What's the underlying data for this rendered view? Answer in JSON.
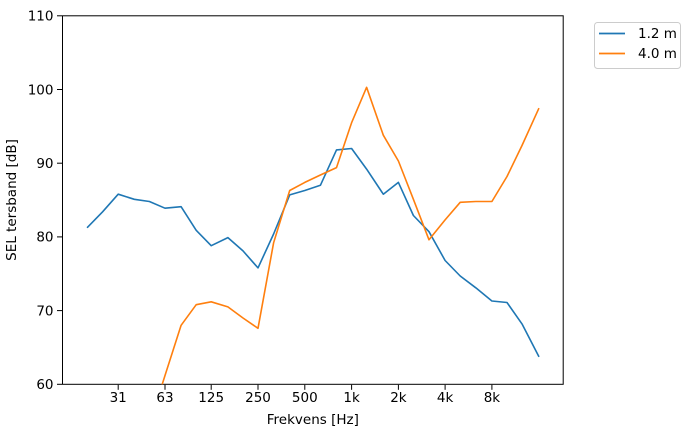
{
  "chart_data": {
    "type": "line",
    "title": "",
    "xlabel": "Frekvens [Hz]",
    "ylabel": "SEL tersband [dB]",
    "x_scale": "log",
    "xlim": [
      13.8,
      23000
    ],
    "ylim": [
      60,
      110
    ],
    "grid": false,
    "legend_position": "outside upper right",
    "x_ticks": [
      {
        "value": 31.5,
        "label": "31"
      },
      {
        "value": 63,
        "label": "63"
      },
      {
        "value": 125,
        "label": "125"
      },
      {
        "value": 250,
        "label": "250"
      },
      {
        "value": 500,
        "label": "500"
      },
      {
        "value": 1000,
        "label": "1k"
      },
      {
        "value": 2000,
        "label": "2k"
      },
      {
        "value": 4000,
        "label": "4k"
      },
      {
        "value": 8000,
        "label": "8k"
      }
    ],
    "y_ticks": [
      60,
      70,
      80,
      90,
      100,
      110
    ],
    "series": [
      {
        "name": "1.2 m",
        "color": "#1f77b4",
        "x": [
          20,
          25,
          31.5,
          40,
          50,
          63,
          80,
          100,
          125,
          160,
          200,
          250,
          315,
          400,
          500,
          630,
          800,
          1000,
          1250,
          1600,
          2000,
          2500,
          3150,
          4000,
          5000,
          6300,
          8000,
          10000,
          12500,
          16000
        ],
        "y": [
          81.3,
          83.4,
          85.8,
          85.1,
          84.8,
          83.9,
          84.1,
          80.9,
          78.8,
          79.9,
          78.1,
          75.8,
          80.4,
          85.7,
          86.3,
          87.0,
          91.8,
          92.0,
          89.2,
          85.8,
          87.4,
          82.9,
          80.7,
          76.8,
          74.7,
          73.1,
          71.3,
          71.1,
          68.2,
          63.8
        ]
      },
      {
        "name": "4.0 m",
        "color": "#ff7f0e",
        "x": [
          50,
          63,
          80,
          100,
          125,
          160,
          200,
          250,
          315,
          400,
          500,
          630,
          800,
          1000,
          1250,
          1600,
          2000,
          2500,
          3150,
          4000,
          5000,
          6300,
          8000,
          10000,
          12500,
          16000
        ],
        "y": [
          54.5,
          61.2,
          68.0,
          70.8,
          71.2,
          70.5,
          69.0,
          67.6,
          79.2,
          86.3,
          87.4,
          88.4,
          89.4,
          95.5,
          100.3,
          93.8,
          90.3,
          85.1,
          79.6,
          82.3,
          84.7,
          84.8,
          84.8,
          88.2,
          92.4,
          97.4
        ]
      }
    ]
  },
  "legend": {
    "items": [
      {
        "label": "1.2 m",
        "color": "#1f77b4"
      },
      {
        "label": "4.0 m",
        "color": "#ff7f0e"
      }
    ]
  }
}
